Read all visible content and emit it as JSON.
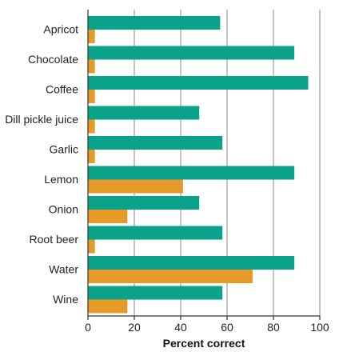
{
  "chart_data": {
    "type": "bar",
    "orientation": "horizontal",
    "categories": [
      "Apricot",
      "Chocolate",
      "Coffee",
      "Dill pickle juice",
      "Garlic",
      "Lemon",
      "Onion",
      "Root beer",
      "Water",
      "Wine"
    ],
    "series": [
      {
        "color": "#0aa38a",
        "values": [
          57,
          89,
          95,
          48,
          58,
          89,
          48,
          58,
          89,
          58
        ]
      },
      {
        "color": "#e69a28",
        "values": [
          3,
          3,
          3,
          3,
          3,
          41,
          17,
          3,
          71,
          17
        ]
      }
    ],
    "xlabel": "Percent correct",
    "xlim": [
      0,
      100
    ],
    "xticks": [
      0,
      20,
      40,
      60,
      80,
      100
    ],
    "grid": "vertical lines"
  }
}
